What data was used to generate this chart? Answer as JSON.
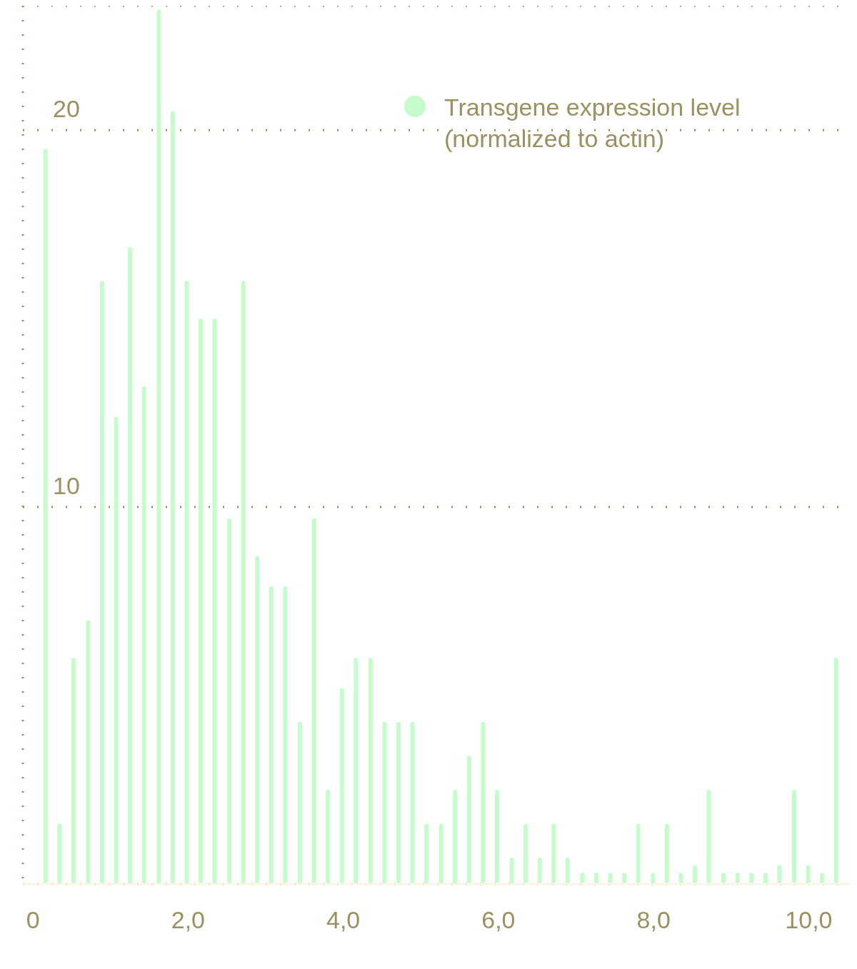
{
  "chart_data": {
    "type": "bar",
    "x": [
      0.16,
      0.34,
      0.52,
      0.71,
      0.89,
      1.07,
      1.25,
      1.43,
      1.62,
      1.8,
      1.98,
      2.16,
      2.34,
      2.53,
      2.71,
      2.89,
      3.07,
      3.25,
      3.44,
      3.62,
      3.8,
      3.98,
      4.16,
      4.35,
      4.53,
      4.71,
      4.89,
      5.07,
      5.26,
      5.44,
      5.62,
      5.8,
      5.98,
      6.17,
      6.35,
      6.53,
      6.71,
      6.89,
      7.08,
      7.26,
      7.44,
      7.62,
      7.8,
      7.99,
      8.17,
      8.35,
      8.53,
      8.71,
      8.9,
      9.08,
      9.26,
      9.44,
      9.62,
      9.81,
      9.99,
      10.17,
      10.35
    ],
    "series": [
      {
        "name": "Transgene expression level (normalized to actin)",
        "color": "#c6fccb",
        "values": [
          19.5,
          1.6,
          6.0,
          7.0,
          16.0,
          12.4,
          16.9,
          13.2,
          23.2,
          20.5,
          16.0,
          15.0,
          15.0,
          9.7,
          16.0,
          8.7,
          7.9,
          7.9,
          4.3,
          9.7,
          2.5,
          5.2,
          6.0,
          6.0,
          4.3,
          4.3,
          4.3,
          1.6,
          1.6,
          2.5,
          3.4,
          4.3,
          2.5,
          0.7,
          1.6,
          0.7,
          1.6,
          0.7,
          0.3,
          0.3,
          0.3,
          0.3,
          1.6,
          0.3,
          1.6,
          0.3,
          0.5,
          2.5,
          0.3,
          0.3,
          0.3,
          0.3,
          0.5,
          2.5,
          0.5,
          0.3,
          6.0
        ]
      }
    ],
    "xlim": [
      -0.13,
      10.53
    ],
    "xticks": [
      0,
      {
        "value": 2,
        "label": "2,0"
      },
      {
        "value": 4,
        "label": "4,0"
      },
      {
        "value": 6,
        "label": "6,0"
      },
      {
        "value": 8,
        "label": "8,0"
      },
      {
        "value": 10,
        "label": "10,0"
      }
    ],
    "ylim": [
      0,
      23.3
    ],
    "yticks": [
      10,
      20
    ],
    "grid": "y",
    "legend": "top right"
  }
}
